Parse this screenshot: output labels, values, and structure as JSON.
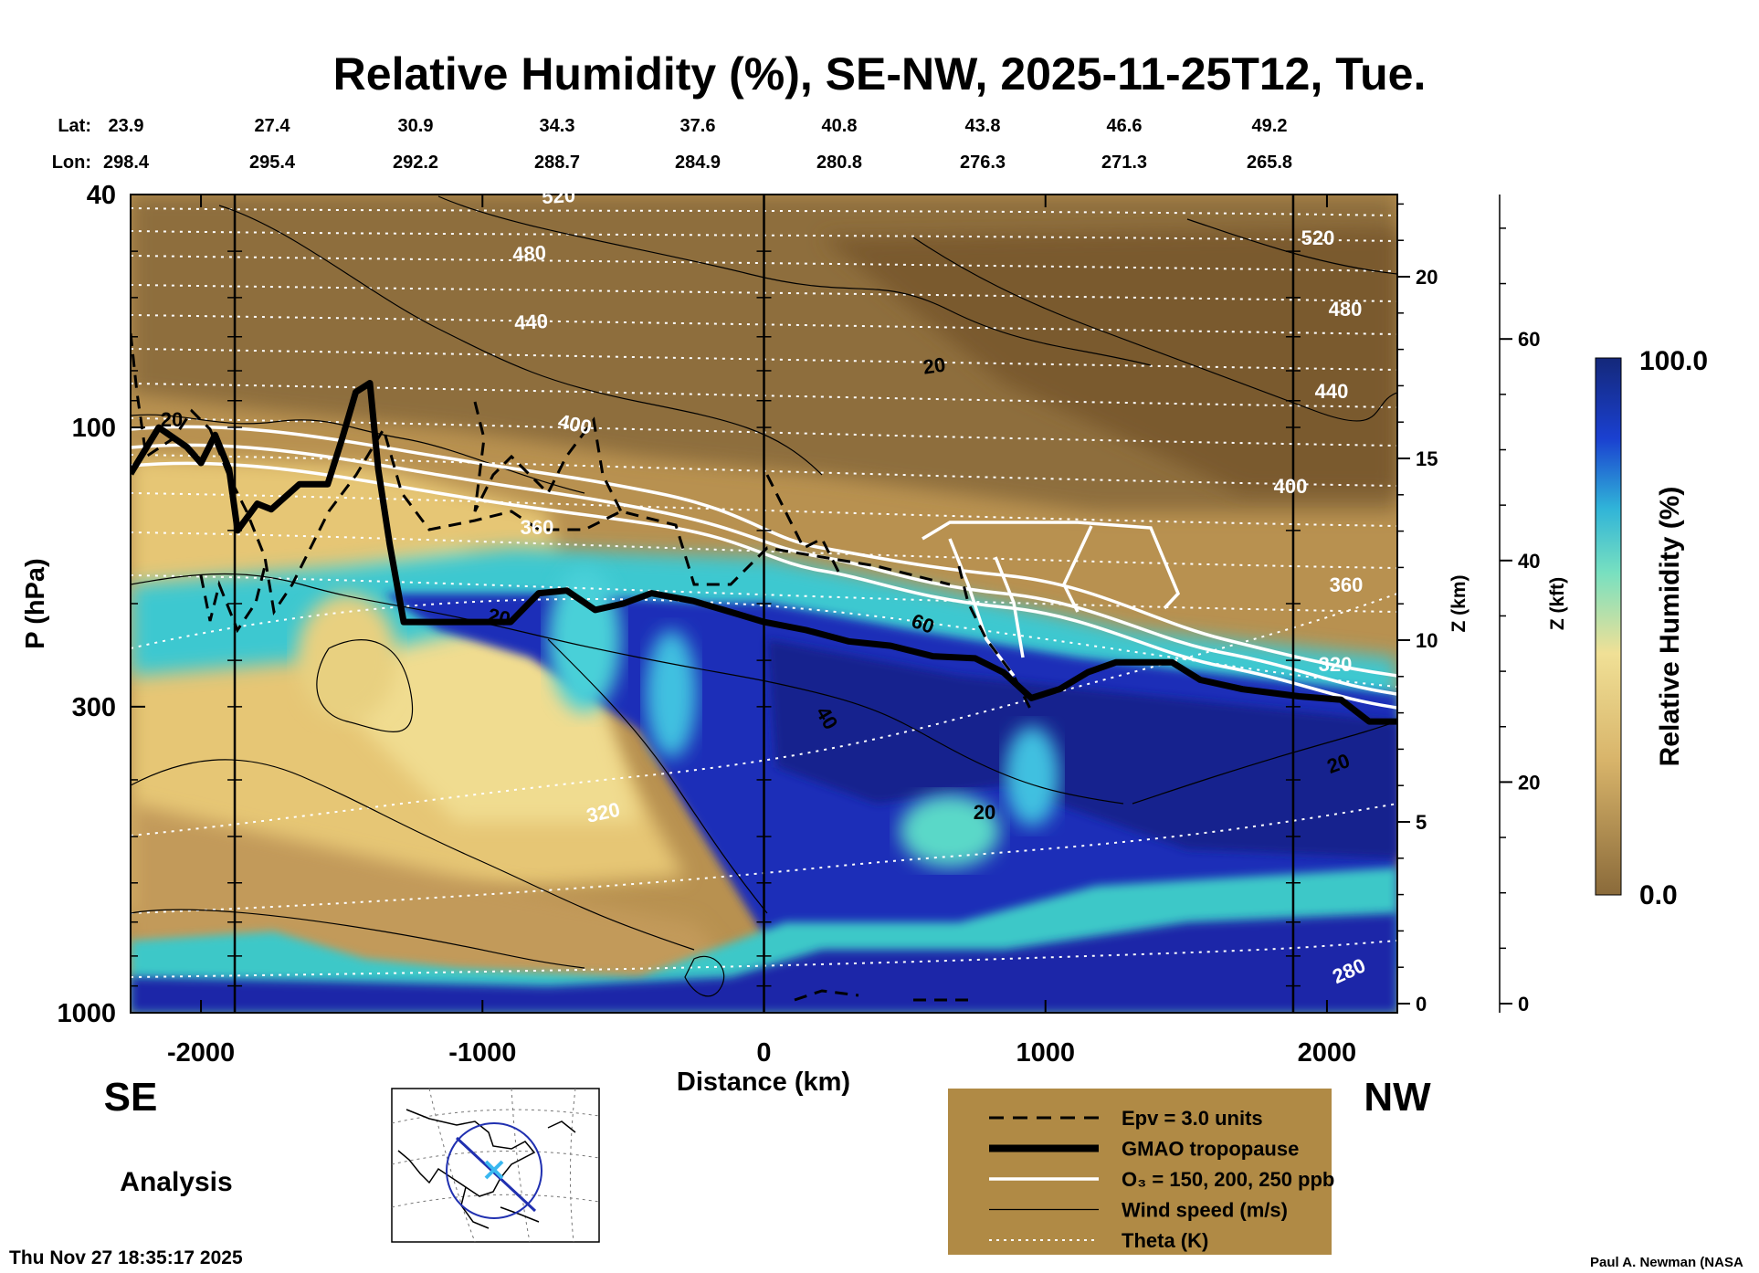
{
  "colors": {
    "dry": "#8a6a3a",
    "mid": "#e8c878",
    "moist": "#34c8c8",
    "wet": "#1a2aa8",
    "legend_bg": "#b08a45"
  },
  "chart_data": {
    "type": "heatmap",
    "title": "Relative Humidity (%), SE-NW, 2025-11-25T12, Tue.",
    "lat_label": "Lat:",
    "lon_label": "Lon:",
    "lat": [
      "23.9",
      "27.4",
      "30.9",
      "34.3",
      "37.6",
      "40.8",
      "43.8",
      "46.6",
      "49.2"
    ],
    "lon": [
      "298.4",
      "295.4",
      "292.2",
      "288.7",
      "284.9",
      "280.8",
      "276.3",
      "271.3",
      "265.8"
    ],
    "xlabel": "Distance (km)",
    "xlim": [
      -2250,
      2250
    ],
    "xticks": [
      "-2000",
      "-1000",
      "0",
      "1000",
      "2000"
    ],
    "xtick_values": [
      -2000,
      -1000,
      0,
      1000,
      2000
    ],
    "ylabel": "P (hPa)",
    "ylim": [
      1000,
      40
    ],
    "yscale": "log",
    "yticks": [
      "40",
      "100",
      "300",
      "1000"
    ],
    "ytick_values": [
      40,
      100,
      300,
      1000
    ],
    "z_km_label": "Z (km)",
    "z_km_ticks": [
      "0",
      "5",
      "10",
      "15",
      "20"
    ],
    "z_km_values": [
      0,
      5,
      10,
      15,
      20
    ],
    "z_kft_label": "Z (kft)",
    "z_kft_ticks": [
      "0",
      "20",
      "40",
      "60"
    ],
    "z_kft_values": [
      0,
      20,
      40,
      60
    ],
    "colorbar": {
      "label": "Relative Humidity (%)",
      "min": "0.0",
      "max": "100.0"
    },
    "theta_labels": [
      "520",
      "480",
      "440",
      "400",
      "360",
      "320",
      "280"
    ],
    "wind_labels": [
      "20",
      "40",
      "60"
    ],
    "tropopause": [
      {
        "x": -2250,
        "p": 120
      },
      {
        "x": -2150,
        "p": 100
      },
      {
        "x": -2050,
        "p": 108
      },
      {
        "x": -2000,
        "p": 115
      },
      {
        "x": -1950,
        "p": 103
      },
      {
        "x": -1900,
        "p": 118
      },
      {
        "x": -1870,
        "p": 150
      },
      {
        "x": -1800,
        "p": 135
      },
      {
        "x": -1750,
        "p": 138
      },
      {
        "x": -1650,
        "p": 125
      },
      {
        "x": -1550,
        "p": 125
      },
      {
        "x": -1500,
        "p": 105
      },
      {
        "x": -1450,
        "p": 87
      },
      {
        "x": -1400,
        "p": 84
      },
      {
        "x": -1370,
        "p": 118
      },
      {
        "x": -1330,
        "p": 158
      },
      {
        "x": -1280,
        "p": 215
      },
      {
        "x": -900,
        "p": 215
      },
      {
        "x": -800,
        "p": 192
      },
      {
        "x": -700,
        "p": 190
      },
      {
        "x": -600,
        "p": 205
      },
      {
        "x": -500,
        "p": 200
      },
      {
        "x": -400,
        "p": 192
      },
      {
        "x": -250,
        "p": 198
      },
      {
        "x": -100,
        "p": 208
      },
      {
        "x": 0,
        "p": 215
      },
      {
        "x": 150,
        "p": 222
      },
      {
        "x": 300,
        "p": 232
      },
      {
        "x": 450,
        "p": 236
      },
      {
        "x": 600,
        "p": 246
      },
      {
        "x": 750,
        "p": 248
      },
      {
        "x": 850,
        "p": 262
      },
      {
        "x": 950,
        "p": 290
      },
      {
        "x": 1050,
        "p": 280
      },
      {
        "x": 1150,
        "p": 262
      },
      {
        "x": 1250,
        "p": 252
      },
      {
        "x": 1450,
        "p": 252
      },
      {
        "x": 1550,
        "p": 270
      },
      {
        "x": 1700,
        "p": 280
      },
      {
        "x": 1900,
        "p": 288
      },
      {
        "x": 2050,
        "p": 292
      },
      {
        "x": 2150,
        "p": 318
      },
      {
        "x": 2250,
        "p": 318
      }
    ],
    "legend": [
      {
        "style": "dashed",
        "label": "Epv = 3.0 units"
      },
      {
        "style": "thick",
        "label": "GMAO tropopause"
      },
      {
        "style": "white",
        "label": "O₃ = 150, 200, 250 ppb"
      },
      {
        "style": "thin",
        "label": "Wind speed (m/s)"
      },
      {
        "style": "dotted",
        "label": "Theta (K)"
      }
    ]
  },
  "labels": {
    "left_dir": "SE",
    "right_dir": "NW",
    "analysis": "Analysis",
    "timestamp": "Thu Nov 27 18:35:17 2025",
    "credit": "Paul A. Newman (NASA"
  }
}
